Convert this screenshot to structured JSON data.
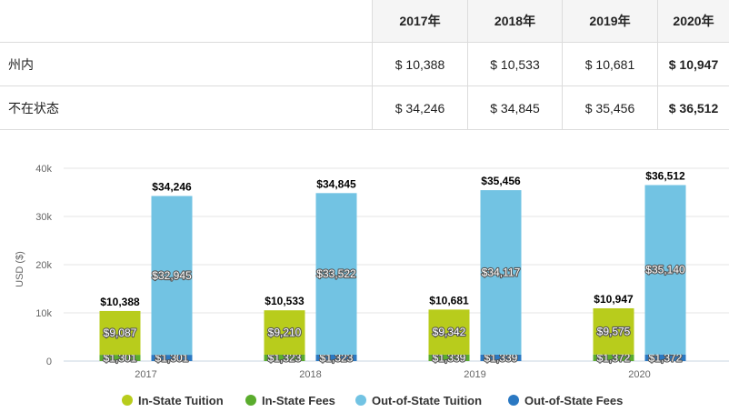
{
  "table": {
    "years": [
      "2017年",
      "2018年",
      "2019年",
      "2020年"
    ],
    "rows": [
      {
        "label": "州内",
        "values": [
          "$ 10,388",
          "$ 10,533",
          "$ 10,681",
          "$ 10,947"
        ]
      },
      {
        "label": "不在状态",
        "values": [
          "$ 34,246",
          "$ 34,845",
          "$ 35,456",
          "$ 36,512"
        ]
      }
    ]
  },
  "chart_data": {
    "type": "bar",
    "stacked": true,
    "categories": [
      "2017",
      "2018",
      "2019",
      "2020"
    ],
    "ylabel": "USD ($)",
    "ylim": [
      0,
      40000
    ],
    "yticks": [
      0,
      10000,
      20000,
      30000,
      40000
    ],
    "ytick_labels": [
      "0",
      "10k",
      "20k",
      "30k",
      "40k"
    ],
    "grid": true,
    "legend_position": "bottom",
    "stacks": [
      {
        "stack": "in-state",
        "totals": [
          10388,
          10533,
          10681,
          10947
        ],
        "total_labels": [
          "$10,388",
          "$10,533",
          "$10,681",
          "$10,947"
        ],
        "series": [
          {
            "name": "In-State Fees",
            "color": "#5aac2d",
            "values": [
              1301,
              1323,
              1339,
              1372
            ],
            "labels": [
              "$1,301",
              "$1,323",
              "$1,339",
              "$1,372"
            ]
          },
          {
            "name": "In-State Tuition",
            "color": "#b8cc1c",
            "values": [
              9087,
              9210,
              9342,
              9575
            ],
            "labels": [
              "$9,087",
              "$9,210",
              "$9,342",
              "$9,575"
            ]
          }
        ]
      },
      {
        "stack": "out-of-state",
        "totals": [
          34246,
          34845,
          35456,
          36512
        ],
        "total_labels": [
          "$34,246",
          "$34,845",
          "$35,456",
          "$36,512"
        ],
        "series": [
          {
            "name": "Out-of-State Fees",
            "color": "#2a78c2",
            "values": [
              1301,
              1323,
              1339,
              1372
            ],
            "labels": [
              "$1,301",
              "$1,323",
              "$1,339",
              "$1,372"
            ]
          },
          {
            "name": "Out-of-State Tuition",
            "color": "#72c3e3",
            "values": [
              32945,
              33522,
              34117,
              35140
            ],
            "labels": [
              "$32,945",
              "$33,522",
              "$34,117",
              "$35,140"
            ]
          }
        ]
      }
    ],
    "legend": [
      {
        "name": "In-State Tuition",
        "color": "#b8cc1c"
      },
      {
        "name": "In-State Fees",
        "color": "#5aac2d"
      },
      {
        "name": "Out-of-State Tuition",
        "color": "#72c3e3"
      },
      {
        "name": "Out-of-State Fees",
        "color": "#2a78c2"
      }
    ]
  }
}
